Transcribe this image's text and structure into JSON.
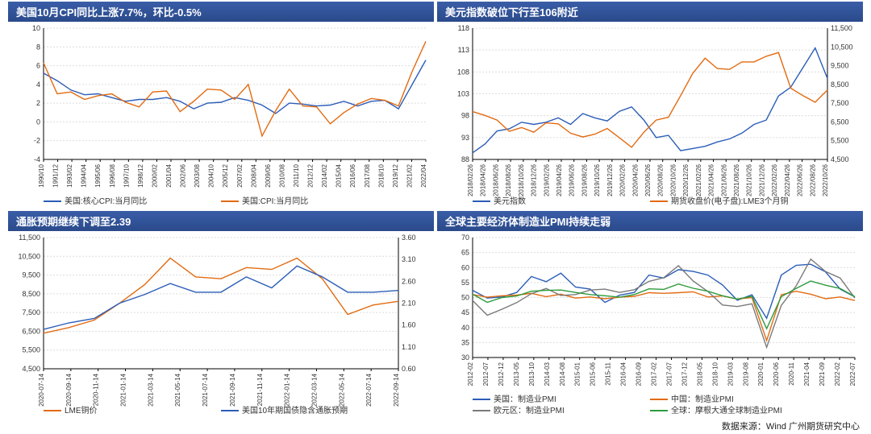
{
  "source_text": "数据来源：Wind 广州期货研究中心",
  "colors": {
    "blue": "#2b5db8",
    "orange": "#e26b12",
    "green": "#2e9b3c",
    "gray": "#7a7a7a",
    "titlebar_top": "#3a5da8",
    "titlebar_bottom": "#2a4a8a",
    "grid": "#dcdcdc",
    "bg": "#ffffff",
    "text": "#333333"
  },
  "panels": [
    {
      "id": "cpi",
      "title": "美国10月CPI同比上涨7.7%，环比-0.5%",
      "y_left": {
        "min": -4,
        "max": 10,
        "step": 2
      },
      "x_labels": [
        "1990/10",
        "1991/12",
        "1993/02",
        "1994/04",
        "1995/06",
        "1996/08",
        "1997/10",
        "1998/12",
        "2000/02",
        "2001/04",
        "2002/06",
        "2003/08",
        "2004/10",
        "2005/12",
        "2007/02",
        "2008/04",
        "2009/06",
        "2010/08",
        "2011/10",
        "2012/12",
        "2014/02",
        "2015/04",
        "2016/06",
        "2017/08",
        "2018/10",
        "2019/12",
        "2021/02",
        "2022/04"
      ],
      "legend": [
        {
          "label": "美国:核心CPI:当月同比",
          "color": "#2b5db8"
        },
        {
          "label": "美国:CPI:当月同比",
          "color": "#e26b12"
        }
      ],
      "series": [
        {
          "color": "#2b5db8",
          "values": [
            5.2,
            4.4,
            3.4,
            2.9,
            3.0,
            2.6,
            2.2,
            2.4,
            2.4,
            2.6,
            2.2,
            1.4,
            2.0,
            2.1,
            2.6,
            2.3,
            1.8,
            0.9,
            2.0,
            1.9,
            1.7,
            1.8,
            2.2,
            1.7,
            2.2,
            2.3,
            1.4,
            4.0,
            6.6
          ]
        },
        {
          "color": "#e26b12",
          "values": [
            6.3,
            3.0,
            3.2,
            2.4,
            2.8,
            3.0,
            2.1,
            1.6,
            3.2,
            3.3,
            1.1,
            2.2,
            3.5,
            3.4,
            2.4,
            4.0,
            -1.5,
            1.2,
            3.5,
            1.7,
            1.6,
            -0.2,
            1.0,
            1.9,
            2.5,
            2.3,
            1.7,
            5.4,
            8.6
          ]
        }
      ]
    },
    {
      "id": "dxy",
      "title": "美元指数破位下行至106附近",
      "y_left": {
        "min": 88,
        "max": 118,
        "step": 5
      },
      "y_right": {
        "min": 4500,
        "max": 11500,
        "step": 1000
      },
      "x_labels": [
        "2018/02/26",
        "2018/04/26",
        "2018/06/26",
        "2018/08/26",
        "2018/10/26",
        "2018/12/26",
        "2019/02/26",
        "2019/04/26",
        "2019/06/26",
        "2019/08/26",
        "2019/10/26",
        "2019/12/26",
        "2020/02/26",
        "2020/04/26",
        "2020/06/26",
        "2020/08/26",
        "2020/10/26",
        "2020/12/26",
        "2021/02/26",
        "2021/04/26",
        "2021/06/26",
        "2021/08/26",
        "2021/10/26",
        "2021/12/26",
        "2022/02/26",
        "2022/04/26",
        "2022/06/26",
        "2022/08/26",
        "2022/10/26"
      ],
      "legend": [
        {
          "label": "美元指数",
          "color": "#2b5db8"
        },
        {
          "label": "期货收盘价(电子盘):LME3个月铜",
          "color": "#e26b12"
        }
      ],
      "series": [
        {
          "color": "#2b5db8",
          "axis": "left",
          "values": [
            89.5,
            91.5,
            94.5,
            95.0,
            96.5,
            96.0,
            96.5,
            97.5,
            96.0,
            98.5,
            97.5,
            96.8,
            99.0,
            100.0,
            97.0,
            93.0,
            93.5,
            90.0,
            90.5,
            91.0,
            92.0,
            92.7,
            94.0,
            96.0,
            97.0,
            102.5,
            104.5,
            109.0,
            113.5,
            106.5
          ]
        },
        {
          "color": "#e26b12",
          "axis": "right",
          "values": [
            7050,
            6850,
            6600,
            6000,
            6200,
            5950,
            6450,
            6400,
            5900,
            5700,
            5850,
            6150,
            5650,
            5150,
            5950,
            6600,
            6750,
            7900,
            9100,
            9900,
            9350,
            9300,
            9700,
            9700,
            10000,
            10200,
            8300,
            7900,
            7550,
            8200
          ]
        }
      ]
    },
    {
      "id": "copper",
      "title": "通胀预期继续下调至2.39",
      "y_left": {
        "min": 4500,
        "max": 11500,
        "step": 1000
      },
      "y_right": {
        "min": 0.6,
        "max": 3.6,
        "step": 0.5,
        "decimals": 2
      },
      "x_labels": [
        "2020-07-14",
        "2020-09-14",
        "2020-11-14",
        "2021-01-14",
        "2021-03-14",
        "2021-05-14",
        "2021-07-14",
        "2021-09-14",
        "2021-11-14",
        "2022-01-14",
        "2022-03-14",
        "2022-05-14",
        "2022-07-14",
        "2022-09-14"
      ],
      "legend": [
        {
          "label": "LME铜价",
          "color": "#e26b12"
        },
        {
          "label": "美国10年期国债隐含通胀预期",
          "color": "#2b5db8"
        }
      ],
      "series": [
        {
          "color": "#e26b12",
          "axis": "left",
          "values": [
            6400,
            6700,
            7100,
            8000,
            9000,
            10400,
            9400,
            9300,
            9900,
            9800,
            10400,
            9300,
            7400,
            7900,
            8100
          ]
        },
        {
          "color": "#2b5db8",
          "axis": "right",
          "values": [
            1.5,
            1.65,
            1.75,
            2.1,
            2.3,
            2.55,
            2.35,
            2.35,
            2.7,
            2.45,
            2.95,
            2.7,
            2.35,
            2.35,
            2.39
          ]
        }
      ]
    },
    {
      "id": "pmi",
      "title": "全球主要经济体制造业PMI持续走弱",
      "y_left": {
        "min": 30,
        "max": 70,
        "step": 5
      },
      "x_labels": [
        "2012-02",
        "2012-07",
        "2012-12",
        "2013-05",
        "2013-10",
        "2014-03",
        "2014-08",
        "2015-01",
        "2015-06",
        "2015-11",
        "2016-04",
        "2016-09",
        "2017-02",
        "2017-07",
        "2017-12",
        "2018-05",
        "2018-10",
        "2019-03",
        "2019-08",
        "2020-01",
        "2020-06",
        "2020-11",
        "2021-04",
        "2021-09",
        "2022-02",
        "2022-07"
      ],
      "legend": [
        {
          "label": "美国：制造业PMI",
          "color": "#2b5db8"
        },
        {
          "label": "中国：制造业PMI",
          "color": "#e26b12"
        },
        {
          "label": "欧元区：制造业PMI",
          "color": "#7a7a7a"
        },
        {
          "label": "全球：摩根大通全球制造业PMI",
          "color": "#2e9b3c"
        }
      ],
      "series": [
        {
          "color": "#2b5db8",
          "values": [
            52.4,
            49.8,
            50.2,
            51.7,
            57.0,
            55.3,
            58.1,
            53.5,
            52.8,
            48.4,
            50.8,
            51.7,
            57.5,
            56.5,
            59.3,
            58.7,
            57.5,
            54.2,
            49.1,
            50.9,
            43.1,
            57.5,
            60.7,
            61.1,
            58.6,
            52.8,
            50.2
          ]
        },
        {
          "color": "#e26b12",
          "values": [
            51.0,
            50.1,
            50.6,
            50.8,
            51.4,
            50.3,
            51.1,
            49.8,
            50.2,
            49.6,
            50.1,
            50.4,
            51.6,
            51.4,
            51.6,
            51.9,
            50.2,
            50.5,
            49.5,
            50.0,
            35.7,
            50.9,
            52.1,
            51.1,
            49.6,
            50.2,
            49.0
          ]
        },
        {
          "color": "#7a7a7a",
          "values": [
            49.0,
            44.1,
            46.1,
            48.3,
            51.3,
            53.0,
            50.7,
            51.0,
            52.5,
            52.8,
            51.7,
            52.6,
            55.4,
            56.6,
            60.6,
            55.5,
            52.0,
            47.5,
            47.0,
            47.9,
            33.4,
            47.4,
            53.8,
            62.8,
            58.7,
            56.5,
            49.8
          ]
        },
        {
          "color": "#2e9b3c",
          "values": [
            51.1,
            48.4,
            50.0,
            50.5,
            52.1,
            52.4,
            52.5,
            51.7,
            51.0,
            50.6,
            50.1,
            51.0,
            52.9,
            52.7,
            54.5,
            53.1,
            52.1,
            50.6,
            49.5,
            50.4,
            39.6,
            50.3,
            53.0,
            55.5,
            54.1,
            53.0,
            50.3
          ]
        }
      ]
    }
  ]
}
